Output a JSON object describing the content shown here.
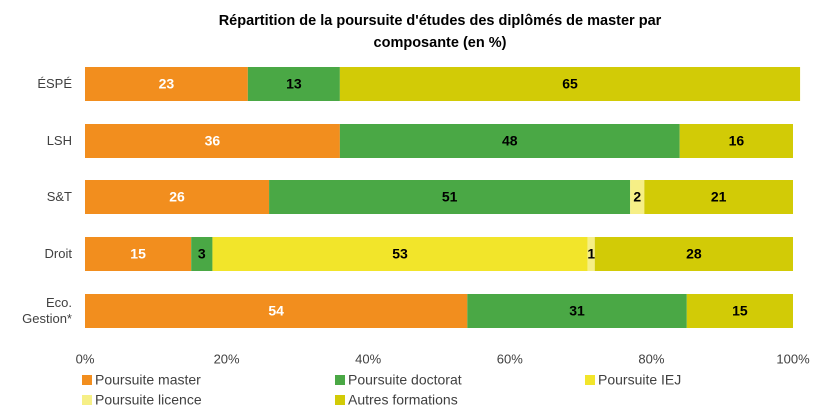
{
  "chart_data": {
    "type": "stacked_barh",
    "title": "Répartition de la poursuite d'études des diplômés de master par composante (en %)",
    "categories": [
      "ÉSPÉ",
      "LSH",
      "S&T",
      "Droit",
      "Eco. Gestion*"
    ],
    "series": [
      {
        "name": "Poursuite master",
        "color": "#f28e1e",
        "label_color": "#ffffff",
        "values": [
          23,
          36,
          26,
          15,
          54
        ]
      },
      {
        "name": "Poursuite doctorat",
        "color": "#4aa845",
        "label_color": "#000000",
        "values": [
          13,
          48,
          51,
          3,
          31
        ]
      },
      {
        "name": "Poursuite IEJ",
        "color": "#f2e52a",
        "label_color": "#000000",
        "values": [
          null,
          null,
          null,
          53,
          null
        ]
      },
      {
        "name": "Poursuite licence",
        "color": "#f6ef86",
        "label_color": "#000000",
        "values": [
          null,
          null,
          2,
          1,
          null
        ]
      },
      {
        "name": "Autres formations",
        "color": "#d2cb06",
        "label_color": "#000000",
        "values": [
          65,
          16,
          21,
          28,
          15
        ]
      }
    ],
    "xlim": [
      0,
      100
    ],
    "xticks": [
      {
        "value": 0,
        "label": "0%"
      },
      {
        "value": 20,
        "label": "20%"
      },
      {
        "value": 40,
        "label": "40%"
      },
      {
        "value": 60,
        "label": "60%"
      },
      {
        "value": 80,
        "label": "80%"
      },
      {
        "value": 100,
        "label": "100%"
      }
    ],
    "grid": false
  }
}
